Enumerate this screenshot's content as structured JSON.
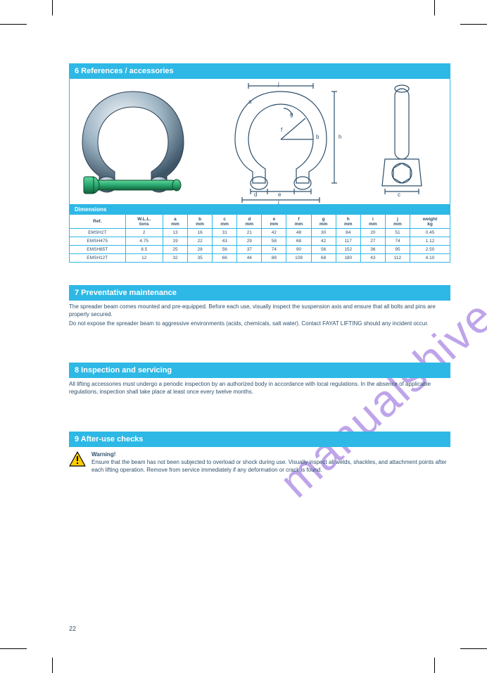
{
  "watermark_text": "manualshive.com",
  "page_number": "22",
  "header_title": "6 References / accessories",
  "dimensions_label": "Dimensions",
  "diagram_labels": {
    "a": "a",
    "b": "b",
    "c": "c",
    "d": "d",
    "e": "e",
    "f": "f",
    "g": "g",
    "h": "h",
    "i": "i",
    "j": "j"
  },
  "table": {
    "columns": [
      "Ref.",
      "W.L.L.",
      "a",
      "b",
      "c",
      "d",
      "e",
      "f",
      "g",
      "h",
      "i",
      "j",
      "weight"
    ],
    "units": [
      "",
      "tons",
      "mm",
      "mm",
      "mm",
      "mm",
      "mm",
      "mm",
      "mm",
      "mm",
      "mm",
      "mm",
      "kg"
    ],
    "rows": [
      [
        "EMSH2T",
        "2",
        "13",
        "16",
        "31",
        "21",
        "42",
        "48",
        "30",
        "84",
        "20",
        "51",
        "0.45"
      ],
      [
        "EMSH475",
        "4.75",
        "19",
        "22",
        "43",
        "29",
        "58",
        "68",
        "42",
        "117",
        "27",
        "74",
        "1.12"
      ],
      [
        "EMSH85T",
        "8.5",
        "25",
        "28",
        "56",
        "37",
        "74",
        "90",
        "56",
        "152",
        "36",
        "95",
        "2.50"
      ],
      [
        "EMSH12T",
        "12",
        "32",
        "35",
        "66",
        "44",
        "88",
        "108",
        "68",
        "180",
        "43",
        "112",
        "4.10"
      ]
    ]
  },
  "sections": {
    "s7_title": "7 Preventative maintenance",
    "s7_body": "The spreader beam comes mounted and pre-equipped. Before each use, visually inspect the suspension axis and ensure that all bolts and pins are properly secured.",
    "s7_body2": "Do not expose the spreader beam to aggressive environments (acids, chemicals, salt water). Contact FAYAT LIFTING should any incident occur.",
    "s8_title": "8 Inspection and servicing",
    "s8_body": "All lifting accessories must undergo a periodic inspection by an authorized body in accordance with local regulations. In the absence of applicable regulations, inspection shall take place at least once every twelve months.",
    "s9_title": "9 After-use checks",
    "s9_warning_intro": "Warning!",
    "s9_body": "Ensure that the beam has not been subjected to overload or shock during use. Visually inspect all welds, shackles, and attachment points after each lifting operation. Remove from service immediately if any deformation or crack is found."
  },
  "colors": {
    "bar": "#2eb8e6",
    "text": "#2d4f6b",
    "watermark": "#8a5bd8",
    "shackle_body_light": "#e8eef2",
    "shackle_body_mid": "#9db4c4",
    "shackle_body_dark": "#4a6378",
    "pin_green": "#2aa86f",
    "pin_green_dark": "#1f7a4f",
    "warn_yellow": "#ffcc00",
    "warn_border": "#000000"
  }
}
